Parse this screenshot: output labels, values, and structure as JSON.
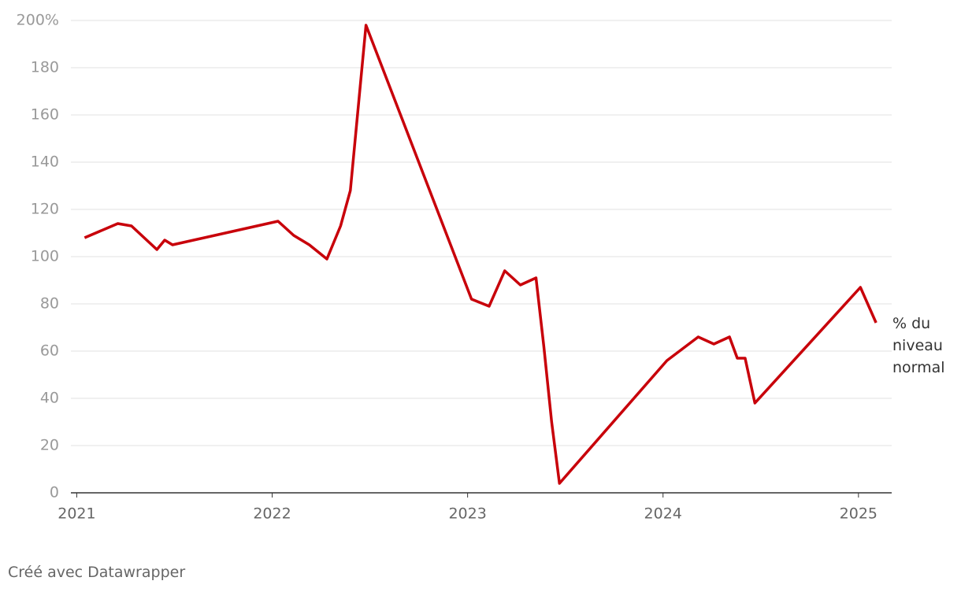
{
  "chart_data": {
    "type": "line",
    "x": [
      2021.04,
      2021.21,
      2021.28,
      2021.41,
      2021.45,
      2021.49,
      2022.03,
      2022.11,
      2022.19,
      2022.28,
      2022.35,
      2022.4,
      2022.48,
      2023.02,
      2023.11,
      2023.19,
      2023.27,
      2023.35,
      2023.39,
      2023.43,
      2023.47,
      2024.02,
      2024.18,
      2024.26,
      2024.34,
      2024.38,
      2024.42,
      2024.47,
      2025.01,
      2025.09
    ],
    "series": [
      {
        "color": "#c8000a",
        "values": [
          108,
          114,
          113,
          103,
          107,
          105,
          115,
          109,
          105,
          99,
          113,
          128,
          198,
          82,
          79,
          94,
          88,
          91,
          62,
          30,
          4,
          56,
          66,
          63,
          66,
          57,
          57,
          38,
          87,
          72
        ]
      }
    ],
    "xlim": [
      2020.97,
      2025.17
    ],
    "xticks": [
      2021,
      2022,
      2023,
      2024,
      2025
    ],
    "ylim": [
      0,
      200
    ],
    "yticks": [
      0,
      20,
      40,
      60,
      80,
      100,
      120,
      140,
      160,
      180,
      {
        "value": 200,
        "label": "200%"
      }
    ],
    "grid": true,
    "annotation": "% du niveau normal",
    "source": "Créé avec Datawrapper"
  }
}
